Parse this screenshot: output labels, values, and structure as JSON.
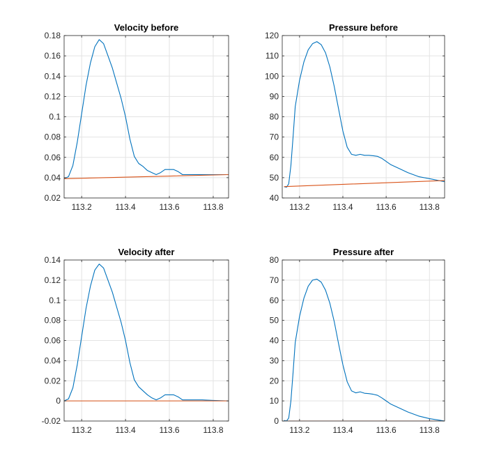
{
  "chart_data": [
    {
      "type": "line",
      "title": "Velocity before",
      "xlabel": "",
      "ylabel": "",
      "xlim": [
        113.12,
        113.87
      ],
      "ylim": [
        0.02,
        0.18
      ],
      "xticks": [
        113.2,
        113.4,
        113.6,
        113.8
      ],
      "xtick_labels": [
        "113.2",
        "113.4",
        "113.6",
        "113.8"
      ],
      "yticks": [
        0.02,
        0.04,
        0.06,
        0.08,
        0.1,
        0.12,
        0.14,
        0.16,
        0.18
      ],
      "ytick_labels": [
        "0.02",
        "0.04",
        "0.06",
        "0.08",
        "0.1",
        "0.12",
        "0.14",
        "0.16",
        "0.18"
      ],
      "grid": true,
      "series": [
        {
          "color": "#0072BD",
          "x": [
            113.12,
            113.14,
            113.16,
            113.18,
            113.2,
            113.22,
            113.24,
            113.26,
            113.28,
            113.3,
            113.32,
            113.34,
            113.36,
            113.38,
            113.4,
            113.42,
            113.44,
            113.46,
            113.48,
            113.5,
            113.52,
            113.54,
            113.56,
            113.58,
            113.6,
            113.62,
            113.64,
            113.66,
            113.7,
            113.75,
            113.8,
            113.87
          ],
          "y": [
            0.039,
            0.041,
            0.052,
            0.075,
            0.103,
            0.131,
            0.153,
            0.169,
            0.176,
            0.172,
            0.16,
            0.148,
            0.133,
            0.118,
            0.1,
            0.078,
            0.061,
            0.054,
            0.051,
            0.047,
            0.045,
            0.043,
            0.045,
            0.048,
            0.048,
            0.048,
            0.046,
            0.043,
            0.043,
            0.043,
            0.043,
            0.043
          ]
        },
        {
          "color": "#D95319",
          "x": [
            113.12,
            113.87
          ],
          "y": [
            0.039,
            0.043
          ]
        }
      ]
    },
    {
      "type": "line",
      "title": "Pressure before",
      "xlabel": "",
      "ylabel": "",
      "xlim": [
        113.12,
        113.87
      ],
      "ylim": [
        40,
        120
      ],
      "xticks": [
        113.2,
        113.4,
        113.6,
        113.8
      ],
      "xtick_labels": [
        "113.2",
        "113.4",
        "113.6",
        "113.8"
      ],
      "yticks": [
        40,
        50,
        60,
        70,
        80,
        90,
        100,
        110,
        120
      ],
      "ytick_labels": [
        "40",
        "50",
        "60",
        "70",
        "80",
        "90",
        "100",
        "110",
        "120"
      ],
      "grid": true,
      "series": [
        {
          "color": "#0072BD",
          "x": [
            113.13,
            113.14,
            113.15,
            113.16,
            113.17,
            113.18,
            113.2,
            113.22,
            113.24,
            113.26,
            113.28,
            113.3,
            113.32,
            113.34,
            113.36,
            113.38,
            113.4,
            113.42,
            113.44,
            113.46,
            113.48,
            113.5,
            113.52,
            113.54,
            113.56,
            113.58,
            113.6,
            113.62,
            113.66,
            113.7,
            113.75,
            113.8,
            113.87
          ],
          "y": [
            45.5,
            45.3,
            47,
            56,
            70,
            85,
            98,
            107,
            113,
            116,
            117,
            115.5,
            111.5,
            104.5,
            95,
            84,
            73,
            65,
            61.5,
            61,
            61.5,
            61,
            61,
            60.8,
            60.5,
            59.5,
            58,
            56.5,
            54.5,
            52.5,
            50.5,
            49.5,
            48
          ]
        },
        {
          "color": "#D95319",
          "x": [
            113.13,
            113.87
          ],
          "y": [
            45.6,
            48.6
          ]
        }
      ]
    },
    {
      "type": "line",
      "title": "Velocity after",
      "xlabel": "",
      "ylabel": "",
      "xlim": [
        113.12,
        113.87
      ],
      "ylim": [
        -0.02,
        0.14
      ],
      "xticks": [
        113.2,
        113.4,
        113.6,
        113.8
      ],
      "xtick_labels": [
        "113.2",
        "113.4",
        "113.6",
        "113.8"
      ],
      "yticks": [
        -0.02,
        0,
        0.02,
        0.04,
        0.06,
        0.08,
        0.1,
        0.12,
        0.14
      ],
      "ytick_labels": [
        "-0.02",
        "0",
        "0.02",
        "0.04",
        "0.06",
        "0.08",
        "0.1",
        "0.12",
        "0.14"
      ],
      "grid": true,
      "series": [
        {
          "color": "#0072BD",
          "x": [
            113.12,
            113.14,
            113.16,
            113.18,
            113.2,
            113.22,
            113.24,
            113.26,
            113.28,
            113.3,
            113.32,
            113.34,
            113.36,
            113.38,
            113.4,
            113.42,
            113.44,
            113.46,
            113.48,
            113.5,
            113.52,
            113.54,
            113.56,
            113.58,
            113.6,
            113.62,
            113.64,
            113.66,
            113.7,
            113.75,
            113.8,
            113.87
          ],
          "y": [
            0.0,
            0.002,
            0.013,
            0.036,
            0.064,
            0.092,
            0.114,
            0.13,
            0.136,
            0.132,
            0.12,
            0.108,
            0.093,
            0.078,
            0.06,
            0.038,
            0.021,
            0.014,
            0.01,
            0.006,
            0.003,
            0.001,
            0.003,
            0.006,
            0.006,
            0.006,
            0.004,
            0.001,
            0.001,
            0.001,
            0.0005,
            0.0
          ]
        },
        {
          "color": "#D95319",
          "x": [
            113.12,
            113.87
          ],
          "y": [
            0.0,
            0.0
          ]
        }
      ]
    },
    {
      "type": "line",
      "title": "Pressure after",
      "xlabel": "",
      "ylabel": "",
      "xlim": [
        113.12,
        113.87
      ],
      "ylim": [
        0,
        80
      ],
      "xticks": [
        113.2,
        113.4,
        113.6,
        113.8
      ],
      "xtick_labels": [
        "113.2",
        "113.4",
        "113.6",
        "113.8"
      ],
      "yticks": [
        0,
        10,
        20,
        30,
        40,
        50,
        60,
        70,
        80
      ],
      "ytick_labels": [
        "0",
        "10",
        "20",
        "30",
        "40",
        "50",
        "60",
        "70",
        "80"
      ],
      "grid": true,
      "series": [
        {
          "color": "#0072BD",
          "x": [
            113.13,
            113.14,
            113.15,
            113.16,
            113.17,
            113.18,
            113.2,
            113.22,
            113.24,
            113.26,
            113.28,
            113.3,
            113.32,
            113.34,
            113.36,
            113.38,
            113.4,
            113.42,
            113.44,
            113.46,
            113.48,
            113.5,
            113.52,
            113.54,
            113.56,
            113.58,
            113.6,
            113.62,
            113.66,
            113.7,
            113.75,
            113.8,
            113.87
          ],
          "y": [
            0.3,
            0.0,
            1.5,
            10,
            24,
            39,
            52,
            61,
            67,
            70,
            70.5,
            69,
            65,
            58.5,
            49.5,
            38.5,
            28,
            19.5,
            15,
            14,
            14.5,
            13.8,
            13.6,
            13.3,
            12.8,
            11.5,
            10,
            8.5,
            6.5,
            4.5,
            2.5,
            1.2,
            0.0
          ]
        },
        {
          "color": "#D95319",
          "x": [
            113.13,
            113.87
          ],
          "y": [
            0.0,
            0.0
          ]
        }
      ]
    }
  ]
}
